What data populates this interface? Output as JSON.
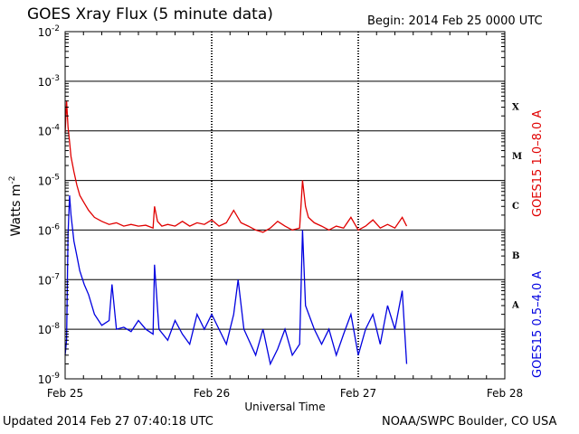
{
  "header": {
    "title": "GOES Xray Flux (5 minute data)",
    "begin": "Begin:  2014 Feb 25 0000 UTC"
  },
  "footer": {
    "updated": "Updated 2014 Feb 27 07:40:18 UTC",
    "credit": "NOAA/SWPC Boulder, CO USA"
  },
  "chart_data": {
    "type": "line",
    "title": "GOES Xray Flux (5 minute data)",
    "xlabel": "Universal Time",
    "ylabel": "Watts m",
    "ylabel_sup": "-2",
    "yscale": "log",
    "ylim": [
      1e-09,
      0.01
    ],
    "xlim_days": [
      0,
      3
    ],
    "x_tick_labels": [
      "Feb 25",
      "Feb 26",
      "Feb 27",
      "Feb 28"
    ],
    "y_tick_exponents": [
      -2,
      -3,
      -4,
      -5,
      -6,
      -7,
      -8,
      -9
    ],
    "flare_classes": [
      "X",
      "M",
      "C",
      "B",
      "A"
    ],
    "grid": true,
    "series": [
      {
        "name": "GOES15 1.0–8.0 A",
        "color": "#e00000",
        "x": [
          0,
          0.01,
          0.02,
          0.03,
          0.04,
          0.06,
          0.08,
          0.1,
          0.13,
          0.16,
          0.2,
          0.25,
          0.3,
          0.35,
          0.4,
          0.45,
          0.5,
          0.55,
          0.6,
          0.61,
          0.63,
          0.66,
          0.7,
          0.75,
          0.8,
          0.85,
          0.9,
          0.95,
          1.0,
          1.05,
          1.1,
          1.15,
          1.2,
          1.25,
          1.3,
          1.35,
          1.4,
          1.45,
          1.5,
          1.55,
          1.6,
          1.62,
          1.64,
          1.66,
          1.7,
          1.75,
          1.8,
          1.85,
          1.9,
          1.95,
          2.0,
          2.05,
          2.1,
          2.15,
          2.2,
          2.25,
          2.3,
          2.33
        ],
        "y": [
          9e-05,
          0.0004,
          0.00012,
          6e-05,
          3e-05,
          1.5e-05,
          8e-06,
          5e-06,
          3.5e-06,
          2.5e-06,
          1.8e-06,
          1.5e-06,
          1.3e-06,
          1.4e-06,
          1.2e-06,
          1.3e-06,
          1.2e-06,
          1.25e-06,
          1.1e-06,
          3e-06,
          1.5e-06,
          1.2e-06,
          1.3e-06,
          1.2e-06,
          1.5e-06,
          1.2e-06,
          1.4e-06,
          1.3e-06,
          1.6e-06,
          1.2e-06,
          1.4e-06,
          2.5e-06,
          1.4e-06,
          1.2e-06,
          1e-06,
          9e-07,
          1.1e-06,
          1.5e-06,
          1.2e-06,
          1e-06,
          1.1e-06,
          1e-05,
          3e-06,
          1.8e-06,
          1.4e-06,
          1.2e-06,
          1e-06,
          1.2e-06,
          1.1e-06,
          1.8e-06,
          1e-06,
          1.2e-06,
          1.6e-06,
          1.1e-06,
          1.3e-06,
          1.1e-06,
          1.8e-06,
          1.2e-06
        ]
      },
      {
        "name": "GOES15 0.5–4.0 A",
        "color": "#0000e0",
        "x": [
          0,
          0.01,
          0.02,
          0.03,
          0.04,
          0.06,
          0.08,
          0.1,
          0.13,
          0.16,
          0.2,
          0.25,
          0.3,
          0.32,
          0.35,
          0.4,
          0.45,
          0.5,
          0.55,
          0.6,
          0.61,
          0.64,
          0.7,
          0.75,
          0.8,
          0.85,
          0.9,
          0.95,
          1.0,
          1.05,
          1.1,
          1.15,
          1.18,
          1.22,
          1.3,
          1.35,
          1.4,
          1.45,
          1.5,
          1.55,
          1.6,
          1.62,
          1.64,
          1.7,
          1.75,
          1.8,
          1.85,
          1.9,
          1.95,
          2.0,
          2.05,
          2.1,
          2.15,
          2.2,
          2.25,
          2.3,
          2.33
        ],
        "y": [
          3e-09,
          6e-09,
          8e-07,
          5e-06,
          2e-06,
          6e-07,
          3e-07,
          1.5e-07,
          8e-08,
          5e-08,
          2e-08,
          1.2e-08,
          1.5e-08,
          8e-08,
          1e-08,
          1.1e-08,
          9e-09,
          1.5e-08,
          1e-08,
          8e-09,
          2e-07,
          1e-08,
          6e-09,
          1.5e-08,
          8e-09,
          5e-09,
          2e-08,
          1e-08,
          2e-08,
          1e-08,
          5e-09,
          2e-08,
          1e-07,
          1e-08,
          3e-09,
          1e-08,
          2e-09,
          4e-09,
          1e-08,
          3e-09,
          5e-09,
          1e-06,
          3e-08,
          1e-08,
          5e-09,
          1e-08,
          3e-09,
          8e-09,
          2e-08,
          3e-09,
          1e-08,
          2e-08,
          5e-09,
          3e-08,
          1e-08,
          6e-08,
          2e-09
        ]
      }
    ]
  }
}
